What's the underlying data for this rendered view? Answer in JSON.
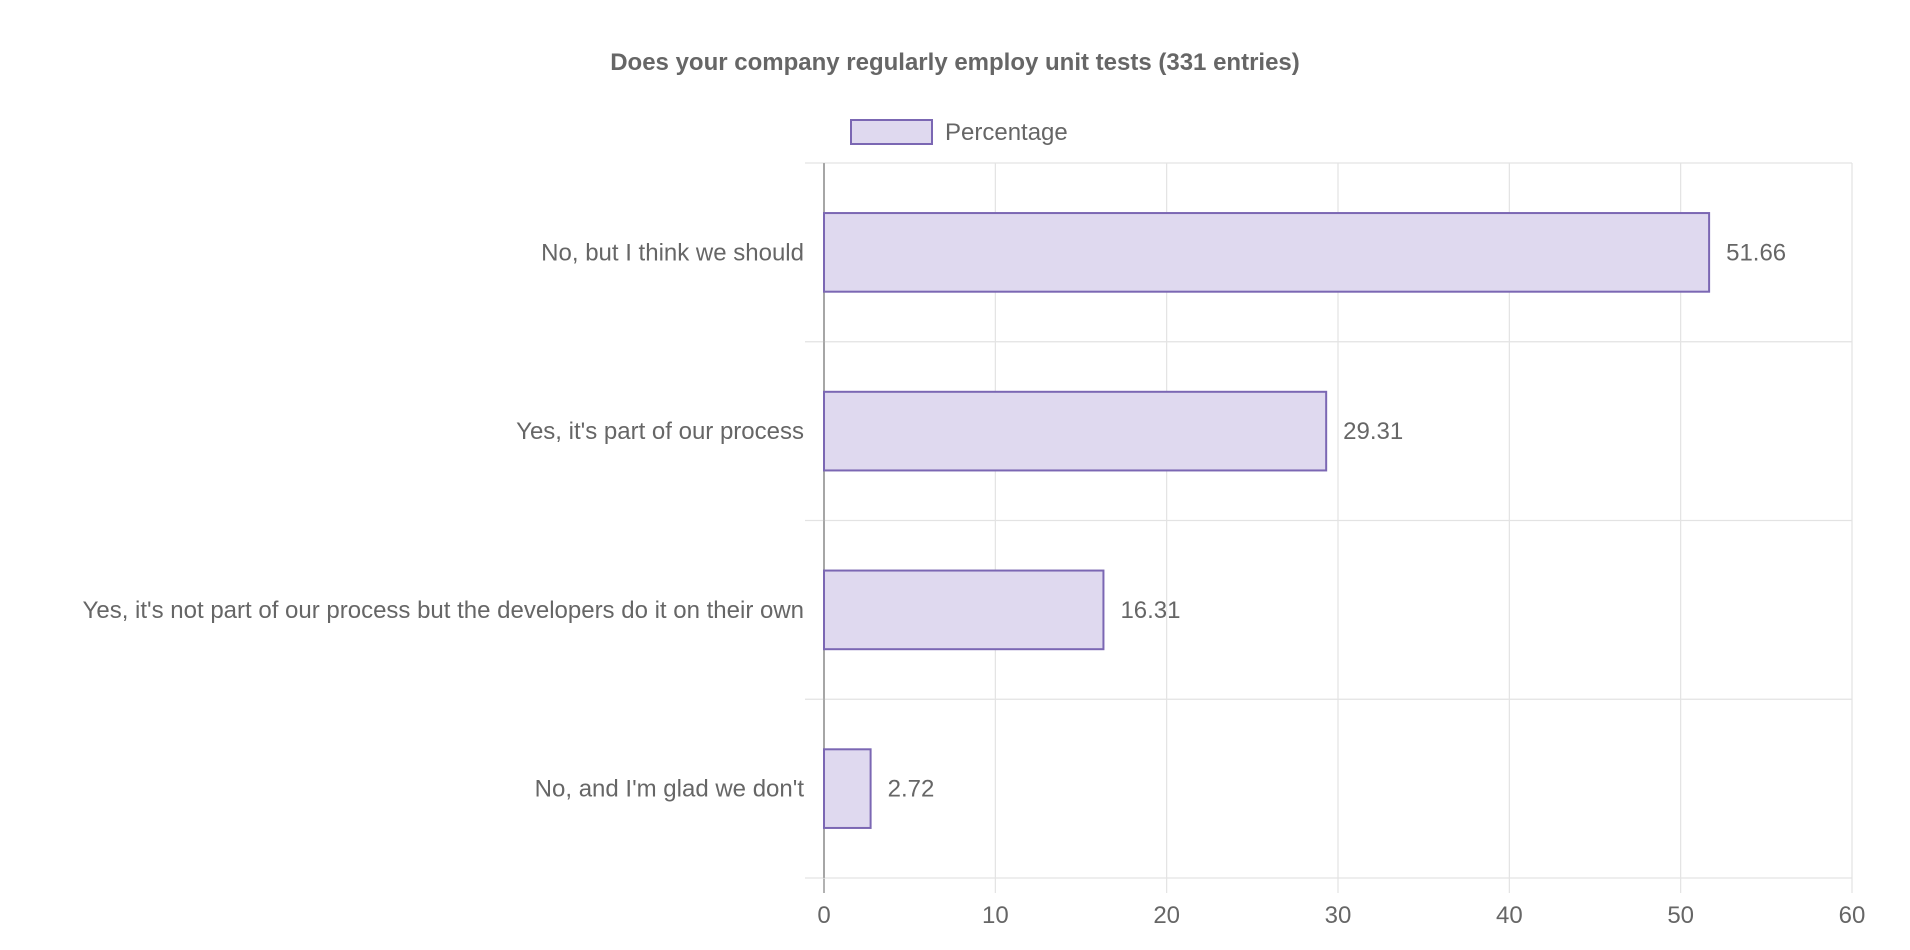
{
  "chart_data": {
    "type": "bar",
    "orientation": "horizontal",
    "title": "Does your company regularly employ unit tests (331 entries)",
    "categories": [
      "No, but I think we should",
      "Yes, it's part of our process",
      "Yes, it's not part of our process but the developers do it on their own",
      "No, and I'm glad we don't"
    ],
    "series": [
      {
        "name": "Percentage",
        "values": [
          51.66,
          29.31,
          16.31,
          2.72
        ]
      }
    ],
    "data_labels": [
      "51.66",
      "29.31",
      "16.31",
      "2.72"
    ],
    "xlim": [
      0,
      60
    ],
    "x_ticks": [
      0,
      10,
      20,
      30,
      40,
      50,
      60
    ],
    "x_tick_labels": [
      "0",
      "10",
      "20",
      "30",
      "40",
      "50",
      "60"
    ],
    "grid": true,
    "legend_position": "top",
    "colors": {
      "bar_fill": "#dfd9ef",
      "bar_stroke": "#7b67b3",
      "grid": "#e3e3e3",
      "axis": "#999999",
      "text": "#666666"
    }
  }
}
